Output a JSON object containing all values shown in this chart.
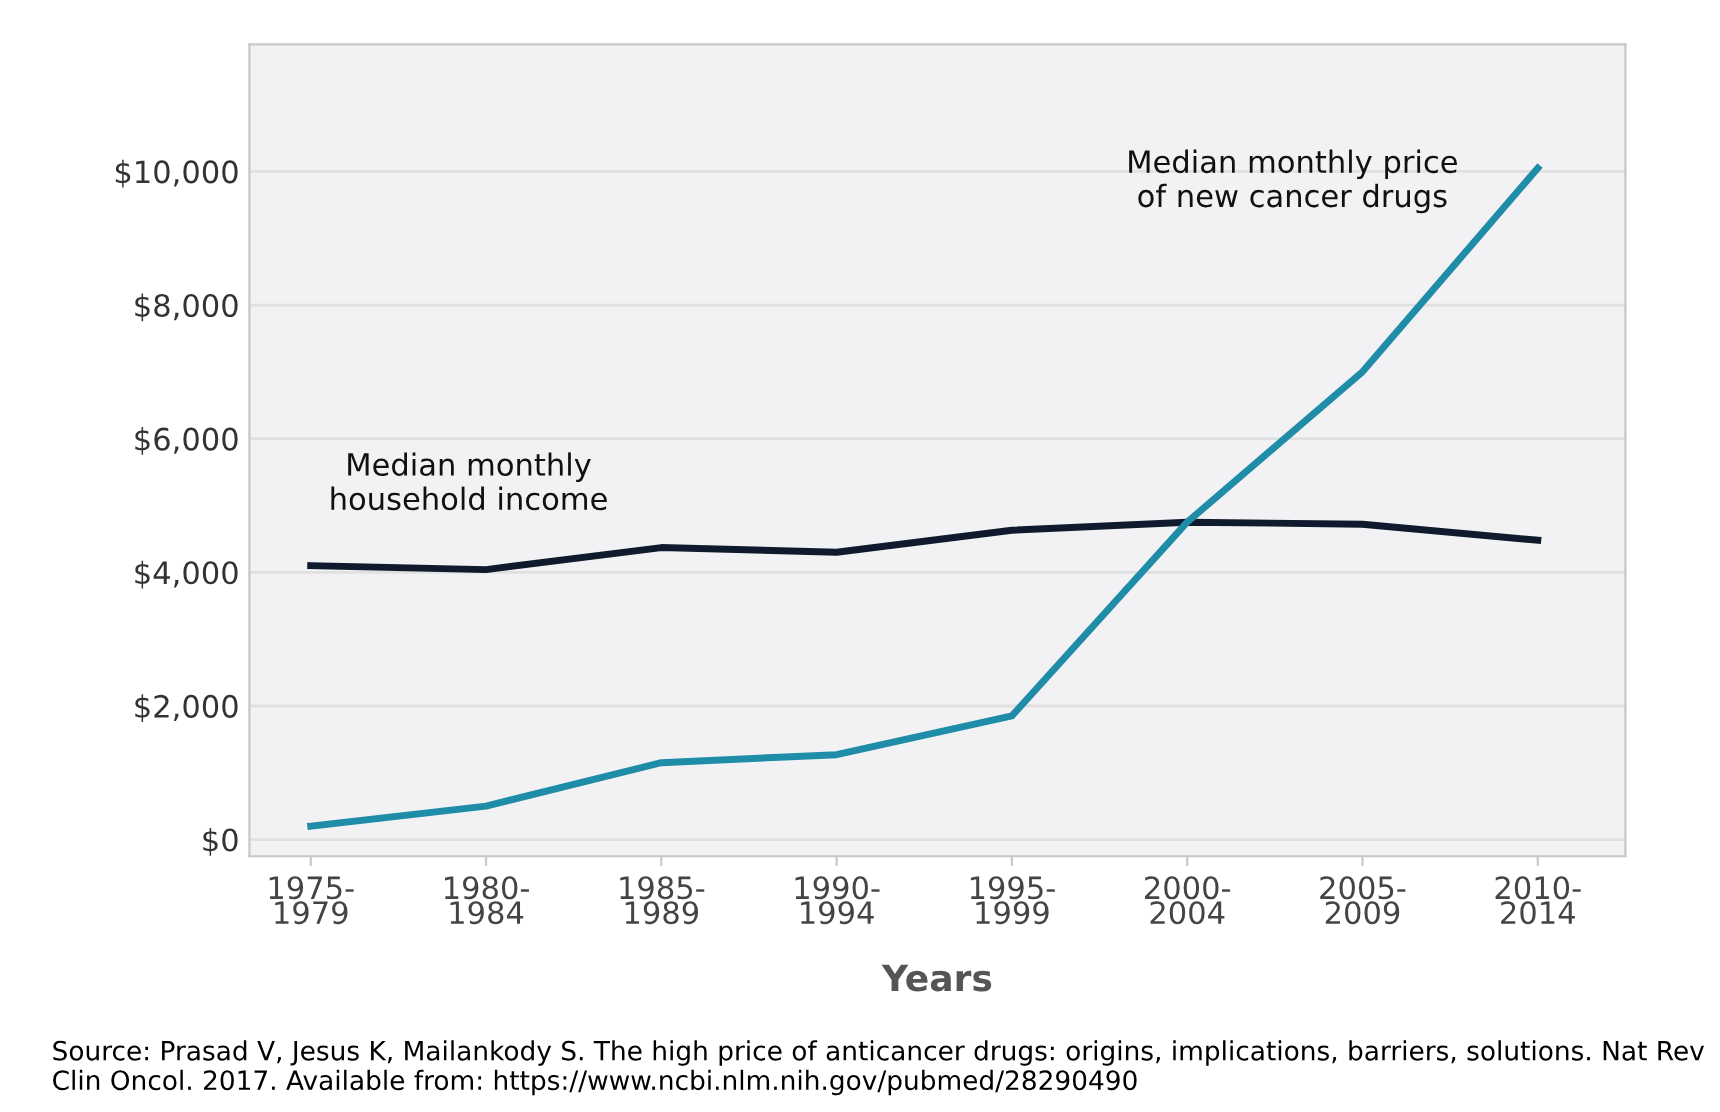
{
  "chart_data": {
    "type": "line",
    "xlabel": "Years",
    "categories": [
      "1975-\n1979",
      "1980-\n1984",
      "1985-\n1989",
      "1990-\n1994",
      "1995-\n1999",
      "2000-\n2004",
      "2005-\n2009",
      "2010-\n2014"
    ],
    "series": [
      {
        "name": "Median monthly\nhousehold income",
        "color": "#0f1b2d",
        "values": [
          4100,
          4040,
          4370,
          4300,
          4630,
          4750,
          4720,
          4480
        ]
      },
      {
        "name": "Median monthly price\nof new cancer drugs",
        "color": "#1f8ca8",
        "values": [
          200,
          500,
          1150,
          1270,
          1850,
          4750,
          7000,
          10050
        ]
      }
    ],
    "ylim": [
      -250,
      11900
    ],
    "yticks": [
      {
        "value": 0,
        "label": "$0"
      },
      {
        "value": 2000,
        "label": "$2,000"
      },
      {
        "value": 4000,
        "label": "$4,000"
      },
      {
        "value": 6000,
        "label": "$6,000"
      },
      {
        "value": 8000,
        "label": "$8,000"
      },
      {
        "value": 10000,
        "label": "$10,000"
      }
    ],
    "grid": "y",
    "marker": "none",
    "line_style": "solid",
    "legend": false,
    "annotations": [
      "Source: Prasad V, Jesus K, Mailankody S. The high price of anticancer drugs: origins, implications, barriers, solutions. Nat Rev Clin Oncol. 2017. Available from: https://www.ncbi.nlm.nih.gov/pubmed/28290490"
    ]
  }
}
